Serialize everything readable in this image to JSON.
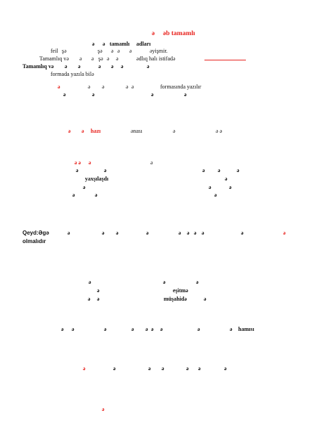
{
  "title_marks": [
    "ə",
    "əb tamamlı"
  ],
  "line1": [
    "ə",
    "ə",
    "tamamlı",
    "adları"
  ],
  "line2": [
    "feil",
    "şə",
    "şə",
    "ə",
    "ə",
    "ə",
    "əyişmir."
  ],
  "line3": [
    "Tamamlıq və",
    "ə",
    "ə",
    "şə",
    "ə",
    "ə",
    "ədlıq halı istifadə"
  ],
  "line4": [
    "Tamamlıq və",
    "ə",
    "ə",
    "ə",
    "ə",
    "ə",
    "ə"
  ],
  "line5": [
    "formada yazıla bilə"
  ],
  "line6": [
    "ə",
    "ə",
    "ə",
    "ə",
    "ə",
    "formasında yazılır"
  ],
  "line7": [
    "ə",
    "ə",
    "ə",
    "ə"
  ],
  "line8": [
    "ə",
    "ə",
    "hazı",
    "ənası",
    "ə",
    "ə ə"
  ],
  "line9": [
    "ə ə",
    "ə",
    "ə"
  ],
  "line10": [
    "ə",
    "ə",
    "ə",
    "ə",
    "ə"
  ],
  "line11": [
    "yaxşılaşdı",
    "ə"
  ],
  "line12": [
    "ə",
    "ə",
    "ə"
  ],
  "line13": [
    "ə",
    "ə",
    "ə"
  ],
  "note": {
    "label": "Qeyd:Əgə",
    "marks": [
      "ə",
      "ə",
      "ə",
      "ə",
      "ə",
      "ə",
      "ə",
      "ə",
      "ə",
      "ə"
    ],
    "tail": "olmalıdır"
  },
  "line14": [
    "ə",
    "ə",
    "ə"
  ],
  "line15": [
    "ə",
    "eşitmə"
  ],
  "line16": [
    "ə",
    "ə",
    "müşahidə",
    "ə"
  ],
  "line17": [
    "ə",
    "ə",
    "ə",
    "ə",
    "ə",
    "ə",
    "ə",
    "ə",
    "ə",
    "hamısı"
  ],
  "line18": [
    "ə",
    "ə",
    "ə",
    "ə",
    "ə",
    "ə",
    "ə",
    "ə"
  ],
  "line19": [
    "ə"
  ],
  "colors": {
    "accent": "#e8231e",
    "text": "#111111"
  }
}
